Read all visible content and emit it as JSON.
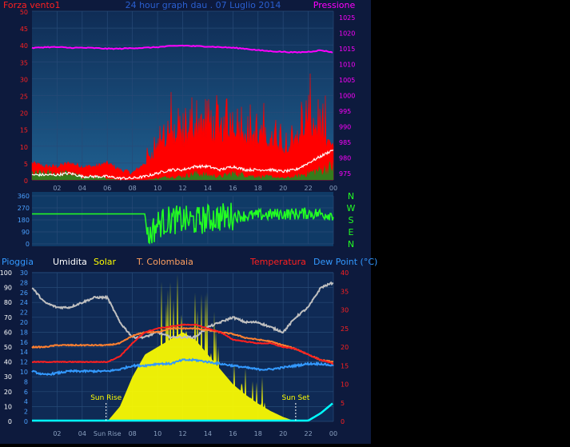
{
  "colors": {
    "page_bg": "#000000",
    "frame_bg": "#0d1a3d",
    "wind_plot_bg_top": "#0f2c55",
    "wind_plot_bg_bottom": "#1f5f8f",
    "dir_plot_bg": "#0f3a66",
    "bottom_plot_bg": "#0f2a55",
    "wind_gust": "#ff0000",
    "wind_avg": "#ffffff",
    "wind_low": "#1f8a1f",
    "pressure": "#ff00ff",
    "direction": "#22ff22",
    "humidity": "#c0c0c0",
    "solar": "#ffff00",
    "t_colombaia": "#ff8030",
    "temperature": "#ff2020",
    "dew_point": "#3399ff",
    "rain": "#00ffff",
    "grid": "#274a77",
    "tick_blue": "#4aa0ff"
  },
  "header": {
    "wind_label": "Forza vento1",
    "title": "24 hour graph dau . 07 Luglio 2014",
    "pressure_label": "Pressione"
  },
  "direction_compass": [
    "N",
    "W",
    "S",
    "E",
    "N"
  ],
  "bottom_legend": {
    "rain": "Pioggia",
    "humidity": "Umidita",
    "solar": "Solar",
    "t_colombaia": "T. Colombaia",
    "temperature": "Temperatura",
    "dew_point": "Dew Point (°C)"
  },
  "chart_data": [
    {
      "type": "line",
      "name_on_chart": "wind & pressure",
      "x_ticks": [
        "02",
        "04",
        "06",
        "08",
        "10",
        "12",
        "14",
        "16",
        "18",
        "20",
        "22",
        "00"
      ],
      "y_left": {
        "label": "Forza vento1",
        "ticks": [
          0,
          5,
          10,
          15,
          20,
          25,
          30,
          35,
          40,
          45,
          50
        ],
        "range": [
          0,
          50
        ]
      },
      "y_right": {
        "label": "Pressione",
        "ticks": [
          975,
          980,
          985,
          990,
          995,
          1000,
          1005,
          1010,
          1015,
          1020,
          1025
        ],
        "range": [
          973,
          1027
        ]
      },
      "hours": [
        0,
        1,
        2,
        3,
        4,
        5,
        6,
        7,
        8,
        9,
        10,
        11,
        12,
        13,
        14,
        15,
        16,
        17,
        18,
        19,
        20,
        21,
        22,
        23,
        24
      ],
      "series": [
        {
          "name": "Forza vento1",
          "key": "gust",
          "values": [
            5,
            4,
            4,
            5,
            4,
            4,
            5,
            3,
            2,
            5,
            10,
            14,
            12,
            16,
            15,
            14,
            17,
            14,
            12,
            12,
            10,
            12,
            17,
            14,
            10
          ]
        },
        {
          "name": "",
          "key": "avg",
          "values": [
            1.5,
            1.5,
            1.5,
            2,
            1,
            1,
            1,
            0.5,
            0.5,
            1,
            2,
            3,
            3,
            4,
            4,
            3,
            4,
            3,
            3,
            3,
            2.5,
            3,
            5,
            7,
            9
          ]
        },
        {
          "name": "",
          "key": "low",
          "values": [
            2,
            2,
            2,
            2,
            1,
            1,
            0.5,
            0,
            0,
            0,
            0.5,
            1,
            1,
            2,
            1.5,
            1,
            2,
            1.5,
            1,
            1,
            0.5,
            1,
            2,
            3,
            4
          ]
        },
        {
          "name": "Pressione",
          "key": "pressure",
          "values": [
            1015.2,
            1015.5,
            1015.5,
            1015.3,
            1015.3,
            1015.2,
            1015,
            1015,
            1015.2,
            1015.3,
            1015.5,
            1015.8,
            1016,
            1015.8,
            1015.7,
            1015.5,
            1015.3,
            1015,
            1014.5,
            1014.2,
            1014,
            1013.8,
            1014,
            1014.5,
            1013.8
          ]
        }
      ]
    },
    {
      "type": "line",
      "name_on_chart": "wind direction",
      "y_ticks": [
        0,
        90,
        180,
        270,
        360
      ],
      "y_range": [
        0,
        360
      ],
      "hours": [
        0,
        2,
        4,
        6,
        8,
        9,
        9.2,
        10,
        11,
        12,
        13,
        14,
        15,
        16,
        17,
        18,
        19,
        20,
        21,
        22,
        23,
        24
      ],
      "series": [
        {
          "name": "",
          "key": "direction",
          "values": [
            225,
            225,
            225,
            225,
            225,
            225,
            40,
            150,
            180,
            180,
            170,
            190,
            200,
            210,
            210,
            215,
            220,
            225,
            225,
            230,
            225,
            220
          ]
        }
      ]
    },
    {
      "type": "area",
      "name_on_chart": "humidity, solar, temperature, dew point, rain",
      "x_ticks": [
        "02",
        "04",
        "Sun Rise",
        "08",
        "10",
        "12",
        "14",
        "16",
        "18",
        "20",
        "22",
        "00"
      ],
      "y_left_rain": {
        "label": "Pioggia",
        "ticks": [
          0,
          10,
          20,
          30,
          40,
          50,
          60,
          70,
          80,
          90,
          100
        ],
        "range": [
          0,
          100
        ]
      },
      "y_left_humidity": {
        "label": "Umidita",
        "ticks": [
          0,
          2,
          4,
          6,
          8,
          10,
          12,
          14,
          16,
          18,
          20,
          22,
          24,
          26,
          28,
          30
        ],
        "range": [
          0,
          30
        ]
      },
      "y_right_temp": {
        "label": "Temperatura",
        "ticks": [
          0,
          5,
          10,
          15,
          20,
          25,
          30,
          35,
          40
        ],
        "range": [
          0,
          40
        ]
      },
      "annotations": [
        {
          "text": "Sun Rise",
          "hour": 5.9
        },
        {
          "text": "Sun Set",
          "hour": 21.0
        }
      ],
      "hours": [
        0,
        1,
        2,
        3,
        4,
        5,
        6,
        7,
        8,
        9,
        10,
        11,
        12,
        13,
        14,
        15,
        16,
        17,
        18,
        19,
        20,
        21,
        22,
        23,
        24
      ],
      "series": [
        {
          "name": "Solar",
          "key": "solar",
          "unit_axis": "rain",
          "values": [
            0,
            0,
            0,
            0,
            0,
            0,
            0,
            10,
            30,
            45,
            50,
            55,
            60,
            55,
            45,
            35,
            25,
            18,
            12,
            7,
            3,
            0,
            0,
            0,
            0
          ]
        },
        {
          "name": "Umidita",
          "key": "humidity",
          "unit_axis": "humidity",
          "values": [
            27,
            24,
            23,
            23,
            24,
            25,
            25,
            20,
            17,
            17,
            18,
            17,
            17,
            17,
            19,
            20,
            21,
            20,
            20,
            19,
            18,
            21,
            23,
            27,
            28
          ]
        },
        {
          "name": "T. Colombaia",
          "key": "t_colombaia",
          "unit_axis": "temp",
          "values": [
            20,
            20,
            20.5,
            20.5,
            20.5,
            20.5,
            20.5,
            21,
            23,
            24,
            24,
            25,
            25,
            25,
            24.5,
            24,
            23.5,
            22.5,
            22,
            21.5,
            20.5,
            19.5,
            18,
            16.5,
            16
          ]
        },
        {
          "name": "Temperatura",
          "key": "temperature",
          "unit_axis": "temp",
          "values": [
            16,
            16,
            16,
            16,
            16,
            16,
            16,
            17.5,
            21,
            24,
            25,
            25.5,
            26,
            26,
            25,
            24,
            22,
            21.5,
            21,
            21,
            20,
            19.5,
            18,
            16.5,
            15.5
          ]
        },
        {
          "name": "Dew Point (°C)",
          "key": "dew_point",
          "unit_axis": "temp",
          "values": [
            13.5,
            12.5,
            13,
            13.5,
            13.5,
            13.5,
            13.5,
            14,
            15,
            15,
            15.5,
            15.5,
            16.5,
            16.5,
            16,
            15.5,
            15,
            14.5,
            14,
            14,
            14.5,
            15,
            15.5,
            15.5,
            15
          ]
        },
        {
          "name": "Pioggia",
          "key": "rain",
          "unit_axis": "rain",
          "values": [
            0,
            0,
            0,
            0,
            0,
            0,
            0,
            0,
            0,
            0,
            0,
            0,
            0,
            0,
            0,
            0,
            0,
            0,
            0,
            0,
            0,
            0,
            0,
            5,
            12
          ]
        }
      ]
    }
  ]
}
